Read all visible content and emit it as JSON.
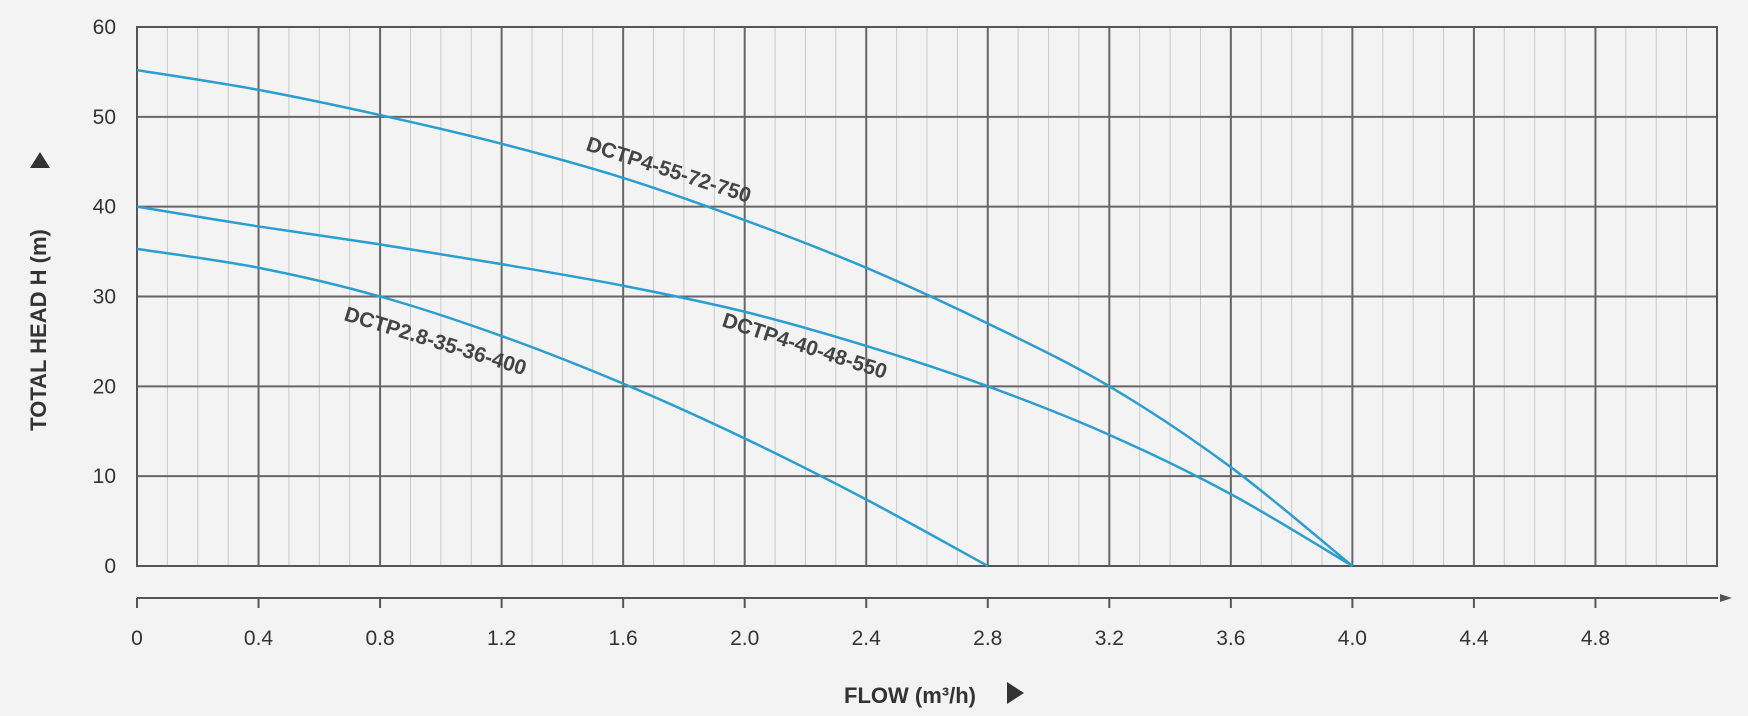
{
  "chart_data": {
    "type": "line",
    "title": "",
    "xlabel": "FLOW (m³/h)",
    "ylabel": "TOTAL HEAD H (m)",
    "xlim": [
      0,
      5.2
    ],
    "ylim": [
      0,
      60
    ],
    "x_ticks": [
      "0",
      "0.4",
      "0.8",
      "1.2",
      "1.6",
      "2.0",
      "2.4",
      "2.8",
      "3.2",
      "3.6",
      "4.0",
      "4.4",
      "4.8"
    ],
    "y_ticks": [
      "0",
      "10",
      "20",
      "30",
      "40",
      "50",
      "60"
    ],
    "grid": true,
    "series": [
      {
        "name": "DCTP4-55-72-750",
        "color": "#2a9fcf",
        "points": [
          [
            0,
            55.2
          ],
          [
            0.4,
            53
          ],
          [
            0.8,
            50.2
          ],
          [
            1.2,
            47
          ],
          [
            1.6,
            43.2
          ],
          [
            2.0,
            38.5
          ],
          [
            2.4,
            33.2
          ],
          [
            2.8,
            27
          ],
          [
            3.2,
            20
          ],
          [
            3.6,
            11
          ],
          [
            4.0,
            0
          ]
        ]
      },
      {
        "name": "DCTP4-40-48-550",
        "color": "#2a9fcf",
        "points": [
          [
            0,
            40
          ],
          [
            0.4,
            37.8
          ],
          [
            0.8,
            35.8
          ],
          [
            1.2,
            33.6
          ],
          [
            1.6,
            31.2
          ],
          [
            2.0,
            28.3
          ],
          [
            2.4,
            24.5
          ],
          [
            2.8,
            20
          ],
          [
            3.2,
            14.6
          ],
          [
            3.6,
            8
          ],
          [
            4.0,
            0
          ]
        ]
      },
      {
        "name": "DCTP2.8-35-36-400",
        "color": "#2a9fcf",
        "points": [
          [
            0,
            35.3
          ],
          [
            0.4,
            33.2
          ],
          [
            0.8,
            30
          ],
          [
            1.2,
            25.6
          ],
          [
            1.6,
            20.3
          ],
          [
            2.0,
            14.2
          ],
          [
            2.4,
            7.4
          ],
          [
            2.8,
            0
          ]
        ]
      }
    ]
  }
}
